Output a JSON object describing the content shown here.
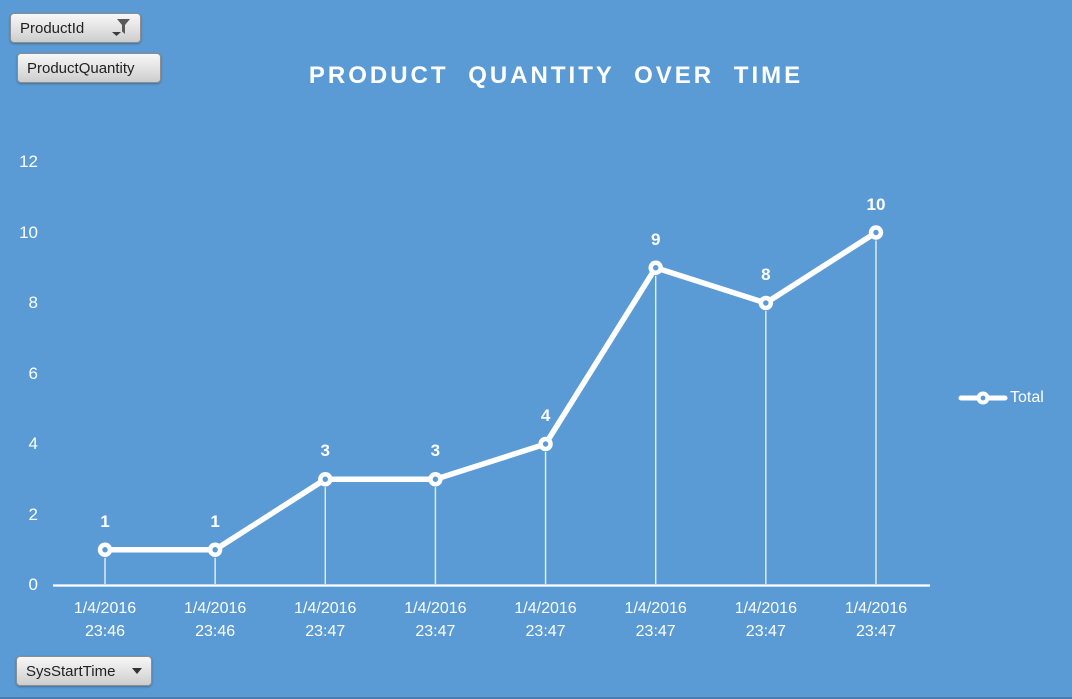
{
  "app": {
    "background_color": "#5b9bd5",
    "accent_dark_strip": "#4a7db0"
  },
  "filters": {
    "product_id": {
      "label": "ProductId",
      "icon": "filter-funnel",
      "filtered": true
    },
    "product_quantity": {
      "label": "ProductQuantity"
    },
    "sys_start_time": {
      "label": "SysStartTime",
      "icon": "chevron-down"
    }
  },
  "chart_data": {
    "type": "line",
    "title": "PRODUCT QUANTITY OVER TIME",
    "categories": [
      "1/4/2016 23:46",
      "1/4/2016 23:46",
      "1/4/2016 23:47",
      "1/4/2016 23:47",
      "1/4/2016 23:47",
      "1/4/2016 23:47",
      "1/4/2016 23:47",
      "1/4/2016 23:47"
    ],
    "series": [
      {
        "name": "Total",
        "values": [
          1,
          1,
          3,
          3,
          4,
          9,
          8,
          10
        ]
      }
    ],
    "xlabel": "",
    "ylabel": "",
    "ylim": [
      0,
      12
    ],
    "yticks": [
      0,
      2,
      4,
      6,
      8,
      10,
      12
    ],
    "grid": false,
    "drop_lines": true,
    "data_labels": true,
    "legend_position": "right",
    "colors": {
      "line": "#ffffff",
      "marker_fill": "#ffffff",
      "marker_hole": "#5b9bd5",
      "axis": "#ffffff",
      "text": "#ffffff"
    }
  }
}
